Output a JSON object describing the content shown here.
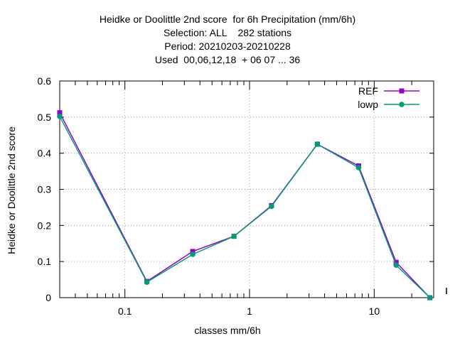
{
  "chart_data": {
    "type": "line",
    "title_lines": [
      "Heidke or Doolittle 2nd score  for 6h Precipitation (mm/6h)",
      "Selection: ALL    282 stations",
      "Period: 20210203-20210228",
      "Used  00,06,12,18  + 06 07 ... 36"
    ],
    "xlabel": "classes mm/6h",
    "ylabel": "Heidke or Doolittle 2nd score",
    "x_scale": "log",
    "xlim": [
      0.03,
      30
    ],
    "ylim": [
      0,
      0.6
    ],
    "x_tick_labels": [
      "0.1",
      "1",
      "10"
    ],
    "y_tick_labels": [
      "0",
      "0.1",
      "0.2",
      "0.3",
      "0.4",
      "0.5",
      "0.6"
    ],
    "grid": true,
    "legend_position": "top-right",
    "series": [
      {
        "name": "REF",
        "color": "#9400d3",
        "x": [
          0.03,
          0.15,
          0.35,
          0.75,
          1.5,
          3.5,
          7.5,
          15,
          28
        ],
        "y": [
          0.512,
          0.045,
          0.128,
          0.17,
          0.255,
          0.425,
          0.365,
          0.098,
          0.0
        ]
      },
      {
        "name": "lowp",
        "color": "#009e73",
        "x": [
          0.03,
          0.15,
          0.35,
          0.75,
          1.5,
          3.5,
          7.5,
          15,
          28
        ],
        "y": [
          0.502,
          0.043,
          0.12,
          0.17,
          0.253,
          0.425,
          0.36,
          0.09,
          0.0
        ]
      }
    ]
  }
}
